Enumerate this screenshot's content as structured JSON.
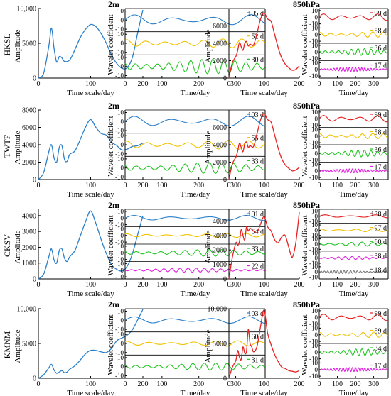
{
  "figure": {
    "row_labels": [
      "HKSL",
      "TWTF",
      "CKSV",
      "KMNM"
    ],
    "col_labels": {
      "surface": "2m",
      "upper": "850hPa"
    },
    "text": {
      "amplitude": "Amplitude",
      "time_scale": "Time scale/day",
      "time": "Time/day",
      "wavelet": "Wavelet coefficient"
    }
  },
  "colors": {
    "blue": "#2b7fc9",
    "red": "#e52222",
    "yellow": "#f2c200",
    "green": "#22c422",
    "magenta": "#e020e0",
    "gray": "#7a7a7a"
  },
  "chart_data": [
    {
      "type": "line",
      "station": "HKSL",
      "height": "2m",
      "kind": "amplitude",
      "x": [
        0,
        10,
        20,
        25,
        30,
        35,
        40,
        45,
        50,
        60,
        70,
        80,
        90,
        100,
        110,
        120,
        130,
        140,
        150,
        160,
        170,
        180,
        190,
        200
      ],
      "series": [
        {
          "values": [
            0,
            700,
            4600,
            7200,
            4300,
            2300,
            3100,
            2900,
            2400,
            2600,
            4100,
            5800,
            7000,
            7700,
            7400,
            6400,
            5000,
            3300,
            2100,
            1400,
            1500,
            3000,
            6500,
            9800
          ]
        }
      ],
      "xticks": [
        0,
        100,
        200
      ],
      "yticks": [
        0,
        5000,
        10000
      ],
      "ytick_labels": [
        "0",
        "5000",
        "10,000"
      ],
      "xlim": [
        0,
        200
      ],
      "ylim": [
        0,
        10000
      ],
      "color": "blue",
      "xlabel": "Time scale/day",
      "ylabel": "Amplitude"
    },
    {
      "type": "line",
      "station": "HKSL",
      "height": "2m",
      "kind": "wavelet",
      "x_range": [
        0,
        380
      ],
      "xticks": [
        0,
        100,
        200,
        300
      ],
      "yticks": [
        10,
        0,
        -10
      ],
      "xlabel": "Time/day",
      "ylabel": "Wavelet coefficient",
      "series": [
        {
          "period_label": "105 d",
          "period_days": 105,
          "amplitude": 6,
          "color": "blue"
        },
        {
          "period_label": "52 d",
          "period_days": 52,
          "amplitude": 5,
          "color": "yellow"
        },
        {
          "period_label": "30 d",
          "period_days": 30,
          "amplitude": 8,
          "color": "green"
        }
      ]
    },
    {
      "type": "line",
      "station": "HKSL",
      "height": "850hPa",
      "kind": "amplitude",
      "x": [
        0,
        10,
        20,
        25,
        30,
        35,
        40,
        45,
        50,
        55,
        60,
        70,
        80,
        90,
        100,
        110,
        120,
        130,
        140,
        150,
        160,
        170,
        180,
        190,
        200
      ],
      "series": [
        {
          "values": [
            0,
            1800,
            2500,
            3200,
            4100,
            3600,
            3200,
            4000,
            4200,
            3700,
            3900,
            3800,
            5200,
            6800,
            7500,
            6800,
            6500,
            5000,
            3500,
            2300,
            1600,
            1200,
            900,
            1000,
            1400
          ]
        }
      ],
      "xticks": [
        0,
        100,
        200
      ],
      "yticks": [
        0,
        2000,
        4000,
        6000
      ],
      "ytick_labels": [
        "0",
        "2000",
        "4000",
        "6000"
      ],
      "xlim": [
        0,
        200
      ],
      "ylim": [
        0,
        8000
      ],
      "color": "red",
      "xlabel": "Time scale/day",
      "ylabel": "Amplitude"
    },
    {
      "type": "line",
      "station": "HKSL",
      "height": "850hPa",
      "kind": "wavelet",
      "x_range": [
        0,
        380
      ],
      "xticks": [
        0,
        100,
        200,
        300
      ],
      "yticks": [
        10,
        0,
        -10
      ],
      "xlabel": "Time/day",
      "ylabel": "Wavelet coefficient",
      "series": [
        {
          "period_label": "99 d",
          "period_days": 99,
          "amplitude": 5,
          "color": "red"
        },
        {
          "period_label": "58 d",
          "period_days": 58,
          "amplitude": 4,
          "color": "yellow"
        },
        {
          "period_label": "36 d",
          "period_days": 36,
          "amplitude": 5,
          "color": "green"
        },
        {
          "period_label": "17 d",
          "period_days": 17,
          "amplitude": 3,
          "color": "magenta"
        }
      ]
    },
    {
      "type": "line",
      "station": "TWTF",
      "height": "2m",
      "kind": "amplitude",
      "x": [
        0,
        10,
        20,
        25,
        30,
        35,
        40,
        45,
        50,
        55,
        60,
        70,
        80,
        90,
        100,
        110,
        120,
        130,
        140,
        150,
        160,
        170,
        180,
        190,
        200
      ],
      "series": [
        {
          "values": [
            0,
            800,
            3200,
            4000,
            2500,
            2000,
            3700,
            3900,
            2300,
            2100,
            2900,
            3300,
            4600,
            6000,
            6900,
            6000,
            5300,
            5100,
            4300,
            3900,
            3400,
            3500,
            3800,
            3900,
            4200
          ]
        }
      ],
      "xticks": [
        0,
        100,
        200
      ],
      "yticks": [
        0,
        2000,
        4000,
        6000,
        8000
      ],
      "ytick_labels": [
        "0",
        "2000",
        "4000",
        "6000",
        "8000"
      ],
      "xlim": [
        0,
        200
      ],
      "ylim": [
        0,
        8000
      ],
      "color": "blue",
      "xlabel": "Time scale/day",
      "ylabel": "Amplitude"
    },
    {
      "type": "line",
      "station": "TWTF",
      "height": "2m",
      "kind": "wavelet",
      "x_range": [
        0,
        380
      ],
      "xticks": [
        0,
        100,
        200,
        300
      ],
      "yticks": [
        10,
        0,
        -10
      ],
      "xlabel": "Time/day",
      "ylabel": "Wavelet coefficient",
      "series": [
        {
          "period_label": "103 d",
          "period_days": 103,
          "amplitude": 6,
          "color": "blue"
        },
        {
          "period_label": "55 d",
          "period_days": 55,
          "amplitude": 5,
          "color": "yellow"
        },
        {
          "period_label": "33 d",
          "period_days": 33,
          "amplitude": 6,
          "color": "green"
        }
      ]
    },
    {
      "type": "line",
      "station": "TWTF",
      "height": "850hPa",
      "kind": "amplitude",
      "x": [
        0,
        10,
        20,
        25,
        30,
        35,
        40,
        45,
        50,
        55,
        60,
        70,
        80,
        90,
        100,
        110,
        120,
        130,
        140,
        150,
        160,
        170,
        180,
        190,
        200
      ],
      "series": [
        {
          "values": [
            0,
            1800,
            2600,
            3300,
            4200,
            3700,
            3200,
            4100,
            4300,
            3700,
            3900,
            3800,
            5300,
            6900,
            7600,
            6900,
            6600,
            5100,
            3600,
            2400,
            1700,
            1300,
            1000,
            1100,
            1400
          ]
        }
      ],
      "xticks": [
        0,
        100,
        200
      ],
      "yticks": [
        0,
        2000,
        4000,
        6000
      ],
      "ytick_labels": [
        "0",
        "2000",
        "4000",
        "6000"
      ],
      "xlim": [
        0,
        200
      ],
      "ylim": [
        0,
        8000
      ],
      "color": "red",
      "xlabel": "Time scale/day",
      "ylabel": "Amplitude"
    },
    {
      "type": "line",
      "station": "TWTF",
      "height": "850hPa",
      "kind": "wavelet",
      "x_range": [
        0,
        380
      ],
      "xticks": [
        0,
        100,
        200,
        300
      ],
      "yticks": [
        10,
        0,
        -10
      ],
      "xlabel": "Time/day",
      "ylabel": "Wavelet coefficient",
      "series": [
        {
          "period_label": "99 d",
          "period_days": 99,
          "amplitude": 5,
          "color": "red"
        },
        {
          "period_label": "58 d",
          "period_days": 58,
          "amplitude": 4,
          "color": "yellow"
        },
        {
          "period_label": "36 d",
          "period_days": 36,
          "amplitude": 5,
          "color": "green"
        },
        {
          "period_label": "17 d",
          "period_days": 17,
          "amplitude": 3,
          "color": "magenta"
        }
      ]
    },
    {
      "type": "line",
      "station": "CKSV",
      "height": "2m",
      "kind": "amplitude",
      "x": [
        0,
        10,
        20,
        25,
        30,
        35,
        40,
        45,
        50,
        55,
        60,
        70,
        80,
        90,
        100,
        110,
        120,
        130,
        140,
        150,
        160,
        170,
        180,
        190,
        200
      ],
      "series": [
        {
          "values": [
            0,
            300,
            1400,
            1900,
            1200,
            1000,
            1800,
            1900,
            1300,
            1100,
            1400,
            1800,
            2700,
            3600,
            4300,
            3500,
            2500,
            1600,
            900,
            600,
            500,
            800,
            1600,
            2800,
            4000
          ]
        }
      ],
      "xticks": [
        0,
        100,
        200
      ],
      "yticks": [
        0,
        1000,
        2000,
        3000,
        4000
      ],
      "ytick_labels": [
        "0",
        "1000",
        "2000",
        "3000",
        "4000"
      ],
      "xlim": [
        0,
        200
      ],
      "ylim": [
        0,
        4400
      ],
      "color": "blue",
      "xlabel": "Time scale/day",
      "ylabel": "Amplitude"
    },
    {
      "type": "line",
      "station": "CKSV",
      "height": "2m",
      "kind": "wavelet",
      "x_range": [
        0,
        380
      ],
      "xticks": [
        0,
        100,
        200,
        300
      ],
      "yticks": [
        10,
        0,
        -10
      ],
      "xlabel": "Time/day",
      "ylabel": "Wavelet coefficient",
      "series": [
        {
          "period_label": "101 d",
          "period_days": 101,
          "amplitude": 4,
          "color": "blue"
        },
        {
          "period_label": "54 d",
          "period_days": 54,
          "amplitude": 3,
          "color": "yellow"
        },
        {
          "period_label": "33 d",
          "period_days": 33,
          "amplitude": 5,
          "color": "green"
        },
        {
          "period_label": "22 d",
          "period_days": 22,
          "amplitude": 3,
          "color": "magenta"
        }
      ]
    },
    {
      "type": "line",
      "station": "CKSV",
      "height": "850hPa",
      "kind": "amplitude",
      "x": [
        0,
        10,
        20,
        25,
        30,
        35,
        40,
        45,
        50,
        55,
        60,
        70,
        80,
        90,
        100,
        110,
        120,
        130,
        140,
        150,
        160,
        170,
        180,
        190,
        200
      ],
      "series": [
        {
          "values": [
            0,
            1500,
            2500,
            2300,
            2600,
            3400,
            3000,
            2700,
            3600,
            3300,
            3500,
            3300,
            3200,
            3800,
            4300,
            3600,
            3300,
            2700,
            2500,
            2900,
            3000,
            2200,
            1500,
            2500,
            4600
          ]
        }
      ],
      "xticks": [
        0,
        100,
        200
      ],
      "yticks": [
        0,
        1000,
        2000,
        3000,
        4000
      ],
      "ytick_labels": [
        "0",
        "1000",
        "2000",
        "3000",
        "4000"
      ],
      "xlim": [
        0,
        200
      ],
      "ylim": [
        0,
        4800
      ],
      "color": "red",
      "xlabel": "Time scale/day",
      "ylabel": "Amplitude"
    },
    {
      "type": "line",
      "station": "CKSV",
      "height": "850hPa",
      "kind": "wavelet",
      "x_range": [
        0,
        380
      ],
      "xticks": [
        0,
        100,
        200,
        300
      ],
      "yticks": [
        10,
        0,
        -10
      ],
      "xlabel": "Time/day",
      "ylabel": "Wavelet coefficient",
      "series": [
        {
          "period_label": "138 d",
          "period_days": 138,
          "amplitude": 3,
          "color": "red"
        },
        {
          "period_label": "97 d",
          "period_days": 97,
          "amplitude": 3,
          "color": "yellow"
        },
        {
          "period_label": "60 d",
          "period_days": 60,
          "amplitude": 4,
          "color": "green"
        },
        {
          "period_label": "38 d",
          "period_days": 38,
          "amplitude": 3,
          "color": "magenta"
        },
        {
          "period_label": "18 d",
          "period_days": 18,
          "amplitude": 3,
          "color": "gray"
        }
      ]
    },
    {
      "type": "line",
      "station": "KMNM",
      "height": "2m",
      "kind": "amplitude",
      "x": [
        0,
        10,
        20,
        25,
        30,
        35,
        40,
        45,
        50,
        55,
        60,
        70,
        80,
        90,
        100,
        110,
        120,
        130,
        140,
        150,
        160,
        170,
        180,
        190,
        200
      ],
      "series": [
        {
          "values": [
            0,
            500,
            1500,
            2000,
            1200,
            700,
            900,
            1100,
            800,
            900,
            1300,
            1800,
            2600,
            3500,
            4000,
            4000,
            3800,
            3700,
            4300,
            5400,
            5800,
            6200,
            7000,
            8400,
            9900
          ]
        }
      ],
      "xticks": [
        0,
        100,
        200
      ],
      "yticks": [
        0,
        5000,
        10000
      ],
      "ytick_labels": [
        "0",
        "5000",
        "10,000"
      ],
      "xlim": [
        0,
        200
      ],
      "ylim": [
        0,
        10000
      ],
      "color": "blue",
      "xlabel": "Time scale/day",
      "ylabel": "Amplitude"
    },
    {
      "type": "line",
      "station": "KMNM",
      "height": "2m",
      "kind": "wavelet",
      "x_range": [
        0,
        380
      ],
      "xticks": [
        0,
        100,
        200,
        300
      ],
      "yticks": [
        10,
        0,
        -10
      ],
      "xlabel": "Time/day",
      "ylabel": "Wavelet coefficient",
      "series": [
        {
          "period_label": "103 d",
          "period_days": 103,
          "amplitude": 4,
          "color": "blue"
        },
        {
          "period_label": "60 d",
          "period_days": 60,
          "amplitude": 3,
          "color": "yellow"
        },
        {
          "period_label": "31 d",
          "period_days": 31,
          "amplitude": 4,
          "color": "green"
        }
      ]
    },
    {
      "type": "line",
      "station": "KMNM",
      "height": "850hPa",
      "kind": "amplitude",
      "x": [
        0,
        10,
        20,
        25,
        30,
        35,
        40,
        45,
        50,
        55,
        60,
        65,
        70,
        80,
        90,
        100,
        110,
        120,
        130,
        140,
        150,
        160,
        170,
        180,
        190,
        200
      ],
      "series": [
        {
          "values": [
            0,
            1600,
            2600,
            4000,
            3000,
            2700,
            4500,
            3600,
            3900,
            7000,
            5000,
            4500,
            3800,
            4600,
            7500,
            9800,
            6500,
            4800,
            3400,
            2400,
            1600,
            1400,
            1100,
            1000,
            900,
            1100
          ]
        }
      ],
      "xticks": [
        0,
        100,
        200
      ],
      "yticks": [
        0,
        5000,
        10000
      ],
      "ytick_labels": [
        "0",
        "5000",
        "10,000"
      ],
      "xlim": [
        0,
        200
      ],
      "ylim": [
        0,
        10000
      ],
      "color": "red",
      "xlabel": "Time scale/day",
      "ylabel": "Amplitude"
    },
    {
      "type": "line",
      "station": "KMNM",
      "height": "850hPa",
      "kind": "wavelet",
      "x_range": [
        0,
        380
      ],
      "xticks": [
        0,
        100,
        200,
        300
      ],
      "yticks": [
        10,
        0,
        -10
      ],
      "xlabel": "Time/day",
      "ylabel": "Wavelet coefficient",
      "series": [
        {
          "period_label": "99 d",
          "period_days": 99,
          "amplitude": 5,
          "color": "red"
        },
        {
          "period_label": "59 d",
          "period_days": 59,
          "amplitude": 4,
          "color": "yellow"
        },
        {
          "period_label": "34 d",
          "period_days": 34,
          "amplitude": 5,
          "color": "green"
        },
        {
          "period_label": "17 d",
          "period_days": 17,
          "amplitude": 3,
          "color": "magenta"
        }
      ]
    }
  ]
}
